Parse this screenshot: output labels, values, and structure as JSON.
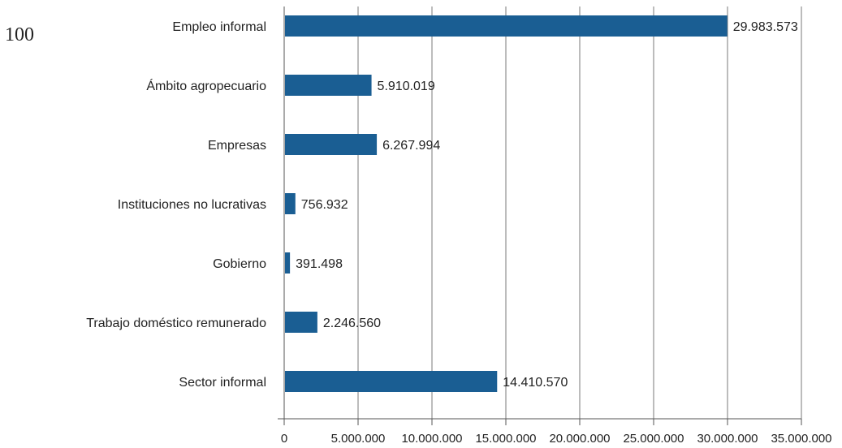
{
  "page_number": "100",
  "colors": {
    "bar": "#1a5e93",
    "grid": "#7a7a7a",
    "axis": "#555555",
    "text": "#222222"
  },
  "chart_data": {
    "type": "bar",
    "orientation": "horizontal",
    "categories": [
      "Empleo informal",
      "Ámbito agropecuario",
      "Empresas",
      "Instituciones no lucrativas",
      "Gobierno",
      "Trabajo doméstico remunerado",
      "Sector informal"
    ],
    "values": [
      29983573,
      5910019,
      6267994,
      756932,
      391498,
      2246560,
      14410570
    ],
    "value_labels": [
      "29.983.573",
      "5.910.019",
      "6.267.994",
      "756.932",
      "391.498",
      "2.246.560",
      "14.410.570"
    ],
    "xlim": [
      0,
      35000000
    ],
    "x_ticks": [
      0,
      5000000,
      10000000,
      15000000,
      20000000,
      25000000,
      30000000,
      35000000
    ],
    "x_tick_labels": [
      "0",
      "5.000.000",
      "10.000.000",
      "15.000.000",
      "20.000.000",
      "25.000.000",
      "30.000.000",
      "35.000.000"
    ],
    "grid": true,
    "title": "",
    "xlabel": "",
    "ylabel": ""
  }
}
